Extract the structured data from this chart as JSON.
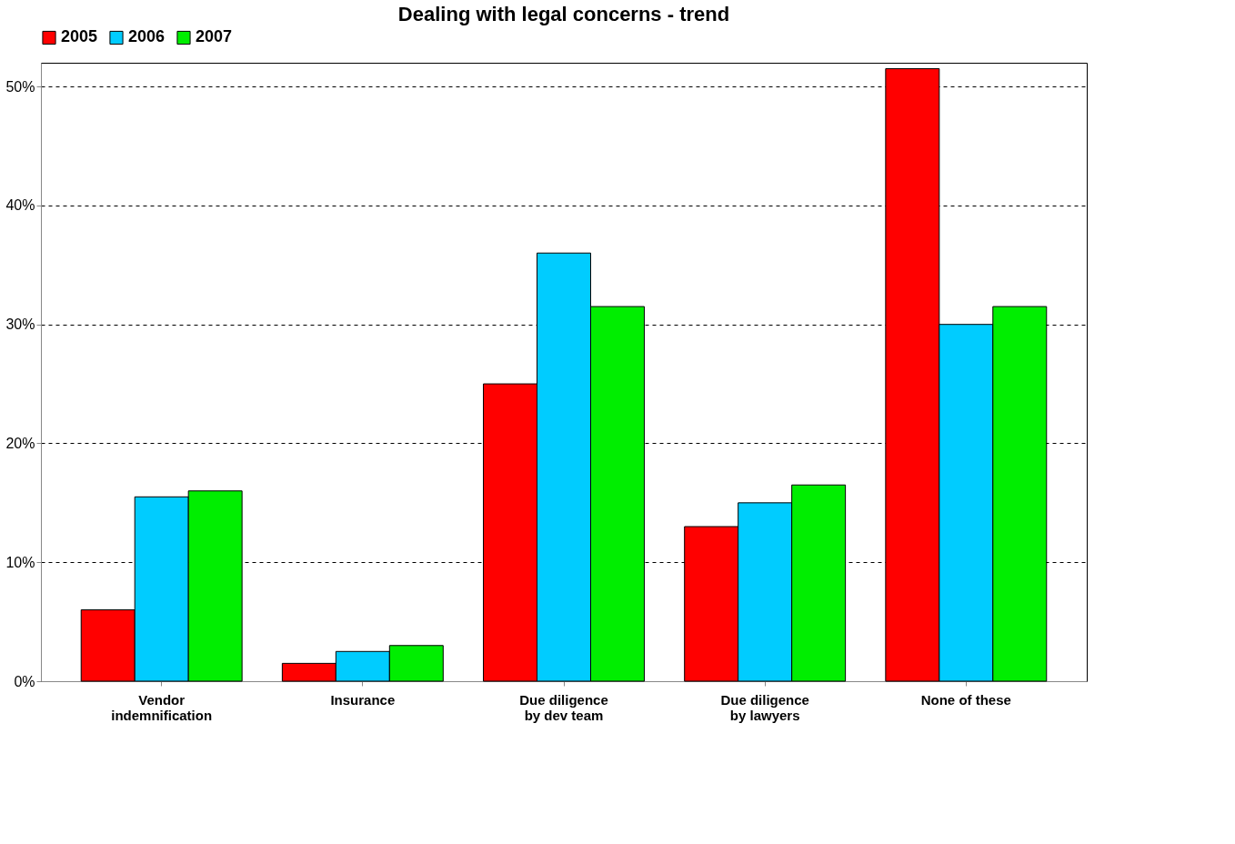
{
  "chart_data": {
    "type": "bar",
    "title": "Dealing with legal concerns - trend",
    "categories": [
      "Vendor indemnification",
      "Insurance",
      "Due diligence by dev team",
      "Due diligence by lawyers",
      "None of these"
    ],
    "series": [
      {
        "name": "2005",
        "color": "#ff0000",
        "values": [
          6,
          1.5,
          25,
          13,
          51.5
        ]
      },
      {
        "name": "2006",
        "color": "#00ccff",
        "values": [
          15.5,
          2.5,
          36,
          15,
          30
        ]
      },
      {
        "name": "2007",
        "color": "#00ee00",
        "values": [
          16,
          3,
          31.5,
          16.5,
          31.5
        ]
      }
    ],
    "ylim": [
      0,
      52
    ],
    "yticks": [
      {
        "value": 0,
        "label": "0%"
      },
      {
        "value": 10,
        "label": "10%"
      },
      {
        "value": 20,
        "label": "20%"
      },
      {
        "value": 30,
        "label": "30%"
      },
      {
        "value": 40,
        "label": "40%"
      },
      {
        "value": 50,
        "label": "50%"
      }
    ],
    "grid": "y",
    "legend": "top"
  }
}
